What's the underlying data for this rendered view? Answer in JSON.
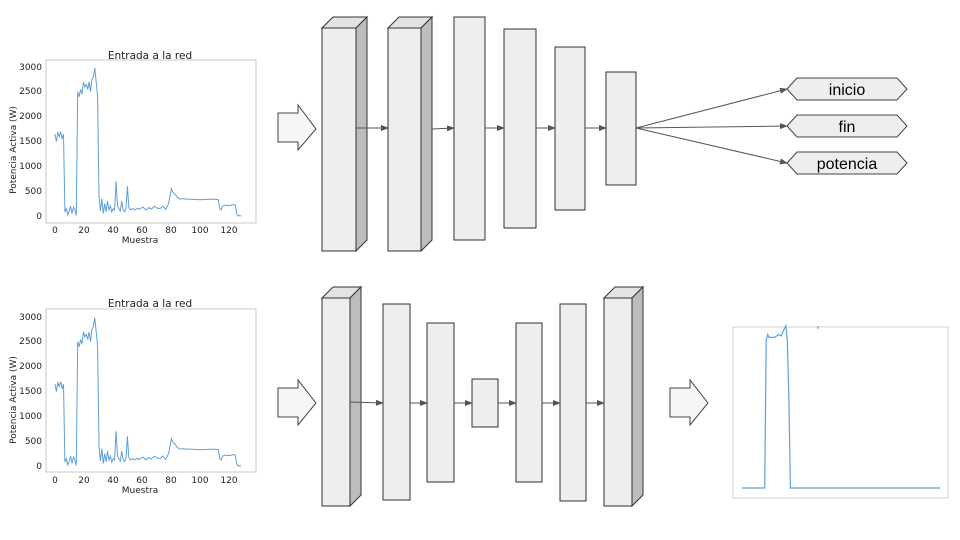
{
  "colors": {
    "signal": "#5fa0d8",
    "layer_front": "#eeeeee",
    "layer_side": "#bdbdbd",
    "layer_top": "#e3e3e3",
    "stroke": "#333333",
    "arrow": "#555555"
  },
  "icons": {
    "flow_arrow": "block-right-arrow-icon",
    "output_tag": "hexagon-tag-icon"
  },
  "top_model": {
    "label": "CNN regression model",
    "outputs": [
      "inicio",
      "fin",
      "potencia"
    ]
  },
  "bottom_model": {
    "label": "encoder-decoder model"
  },
  "chart_data": [
    {
      "id": "input-top",
      "type": "line",
      "title": "Entrada a la red",
      "xlabel": "Muestra",
      "ylabel": "Potencia Activa (W)",
      "xlim": [
        -5,
        137
      ],
      "ylim": [
        -150,
        3150
      ],
      "xticks": [
        0,
        20,
        40,
        60,
        80,
        100,
        120
      ],
      "yticks": [
        0,
        500,
        1000,
        1500,
        2000,
        2500,
        3000
      ],
      "grid": false,
      "x": [
        0,
        1,
        2,
        3,
        4,
        5,
        6,
        7,
        8,
        9,
        10,
        11,
        12,
        13,
        14,
        15,
        16,
        17,
        18,
        19,
        20,
        21,
        22,
        23,
        24,
        25,
        26,
        27,
        28,
        29,
        30,
        31,
        32,
        33,
        34,
        35,
        36,
        37,
        38,
        39,
        40,
        41,
        42,
        43,
        44,
        45,
        46,
        47,
        48,
        49,
        50,
        51,
        52,
        53,
        54,
        55,
        56,
        57,
        58,
        59,
        60,
        62,
        64,
        66,
        68,
        70,
        72,
        74,
        76,
        78,
        80,
        82,
        83,
        84,
        85,
        86,
        87,
        88,
        90,
        92,
        95,
        100,
        105,
        110,
        115,
        116,
        117,
        118,
        120,
        123,
        125,
        127,
        128,
        129,
        130,
        131
      ],
      "y": [
        1650,
        1500,
        1680,
        1600,
        1700,
        1550,
        1650,
        80,
        150,
        20,
        100,
        200,
        50,
        180,
        120,
        10,
        2500,
        2400,
        2550,
        2450,
        2700,
        2600,
        2650,
        2550,
        2700,
        2500,
        2750,
        2800,
        2980,
        2700,
        2400,
        400,
        100,
        350,
        50,
        250,
        80,
        300,
        120,
        200,
        80,
        150,
        120,
        700,
        200,
        150,
        100,
        300,
        120,
        90,
        150,
        600,
        180,
        120,
        140,
        150,
        120,
        140,
        160,
        130,
        150,
        180,
        120,
        170,
        140,
        200,
        160,
        150,
        200,
        130,
        250,
        550,
        480,
        450,
        420,
        380,
        360,
        340,
        350,
        340,
        340,
        330,
        330,
        340,
        330,
        150,
        120,
        200,
        220,
        210,
        230,
        220,
        40,
        0,
        10,
        0
      ]
    },
    {
      "id": "input-bottom",
      "type": "line",
      "title": "Entrada a la red",
      "xlabel": "Muestra",
      "ylabel": "Potencia Activa (W)",
      "xlim": [
        -5,
        137
      ],
      "ylim": [
        -150,
        3150
      ],
      "xticks": [
        0,
        20,
        40,
        60,
        80,
        100,
        120
      ],
      "yticks": [
        0,
        500,
        1000,
        1500,
        2000,
        2500,
        3000
      ],
      "grid": false,
      "x": [
        0,
        1,
        2,
        3,
        4,
        5,
        6,
        7,
        8,
        9,
        10,
        11,
        12,
        13,
        14,
        15,
        16,
        17,
        18,
        19,
        20,
        21,
        22,
        23,
        24,
        25,
        26,
        27,
        28,
        29,
        30,
        31,
        32,
        33,
        34,
        35,
        36,
        37,
        38,
        39,
        40,
        41,
        42,
        43,
        44,
        45,
        46,
        47,
        48,
        49,
        50,
        51,
        52,
        53,
        54,
        55,
        56,
        57,
        58,
        59,
        60,
        62,
        64,
        66,
        68,
        70,
        72,
        74,
        76,
        78,
        80,
        82,
        83,
        84,
        85,
        86,
        87,
        88,
        90,
        92,
        95,
        100,
        105,
        110,
        115,
        116,
        117,
        118,
        120,
        123,
        125,
        127,
        128,
        129,
        130,
        131
      ],
      "y": [
        1650,
        1500,
        1680,
        1600,
        1700,
        1550,
        1650,
        80,
        150,
        20,
        100,
        200,
        50,
        180,
        120,
        10,
        2500,
        2400,
        2550,
        2450,
        2700,
        2600,
        2650,
        2550,
        2700,
        2500,
        2750,
        2800,
        2980,
        2700,
        2400,
        400,
        100,
        350,
        50,
        250,
        80,
        300,
        120,
        200,
        80,
        150,
        120,
        700,
        200,
        150,
        100,
        300,
        120,
        90,
        150,
        600,
        180,
        120,
        140,
        150,
        120,
        140,
        160,
        130,
        150,
        180,
        120,
        170,
        140,
        200,
        160,
        150,
        200,
        130,
        250,
        550,
        480,
        450,
        420,
        380,
        360,
        340,
        350,
        340,
        340,
        330,
        330,
        340,
        330,
        150,
        120,
        200,
        220,
        210,
        230,
        220,
        40,
        0,
        10,
        0
      ]
    },
    {
      "id": "output-bottom",
      "type": "line",
      "title": "",
      "xlabel": "",
      "ylabel": "",
      "xlim": [
        -5,
        137
      ],
      "ylim": [
        -150,
        3150
      ],
      "grid": false,
      "x": [
        0,
        15,
        16,
        17,
        18,
        19,
        20,
        22,
        24,
        26,
        28,
        29,
        30,
        31,
        32,
        33,
        34,
        40,
        60,
        80,
        100,
        120,
        131
      ],
      "y": [
        0,
        0,
        2500,
        2600,
        2550,
        2560,
        2550,
        2560,
        2600,
        2580,
        2700,
        2750,
        2500,
        1500,
        0,
        0,
        0,
        0,
        0,
        0,
        0,
        0,
        0
      ]
    }
  ]
}
